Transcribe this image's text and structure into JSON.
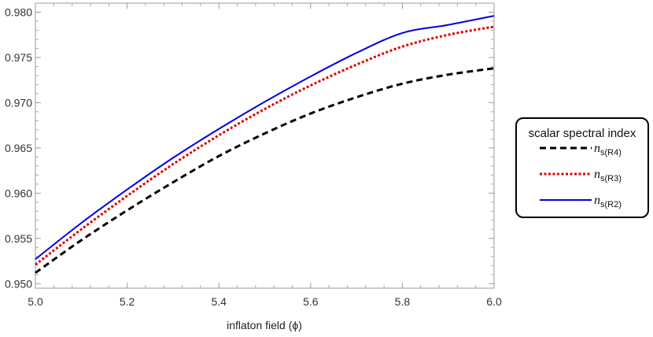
{
  "chart_data": {
    "type": "line",
    "title": "",
    "xlabel": "inflaton field (ϕ)",
    "ylabel": "",
    "xlim": [
      5.0,
      6.0
    ],
    "ylim": [
      0.9495,
      0.981
    ],
    "x_ticks": [
      "5.0",
      "5.2",
      "5.4",
      "5.6",
      "5.8",
      "6.0"
    ],
    "y_ticks": [
      "0.950",
      "0.955",
      "0.960",
      "0.965",
      "0.970",
      "0.975",
      "0.980"
    ],
    "grid": false,
    "legend": {
      "title": "scalar spectral index",
      "placement": "right"
    },
    "x": [
      5.0,
      5.1,
      5.2,
      5.3,
      5.4,
      5.5,
      5.6,
      5.7,
      5.8,
      5.9,
      6.0
    ],
    "series": [
      {
        "name": "n_s(R4)",
        "label_main": "n",
        "label_sub": "s(R4)",
        "color": "#000000",
        "dash": "dashed",
        "values": [
          0.9512,
          0.9548,
          0.9581,
          0.9612,
          0.9641,
          0.9666,
          0.9688,
          0.9706,
          0.9721,
          0.9731,
          0.9738
        ]
      },
      {
        "name": "n_s(R3)",
        "label_main": "n",
        "label_sub": "s(R3)",
        "color": "#e00000",
        "dash": "dotted",
        "values": [
          0.9521,
          0.956,
          0.9597,
          0.9632,
          0.9664,
          0.9693,
          0.9719,
          0.9742,
          0.9762,
          0.9775,
          0.9784
        ]
      },
      {
        "name": "n_s(R2)",
        "label_main": "n",
        "label_sub": "s(R2)",
        "color": "#0000e0",
        "dash": "solid",
        "values": [
          0.9527,
          0.9567,
          0.9604,
          0.9639,
          0.9671,
          0.9701,
          0.9729,
          0.9755,
          0.9777,
          0.9786,
          0.9796
        ]
      }
    ]
  }
}
